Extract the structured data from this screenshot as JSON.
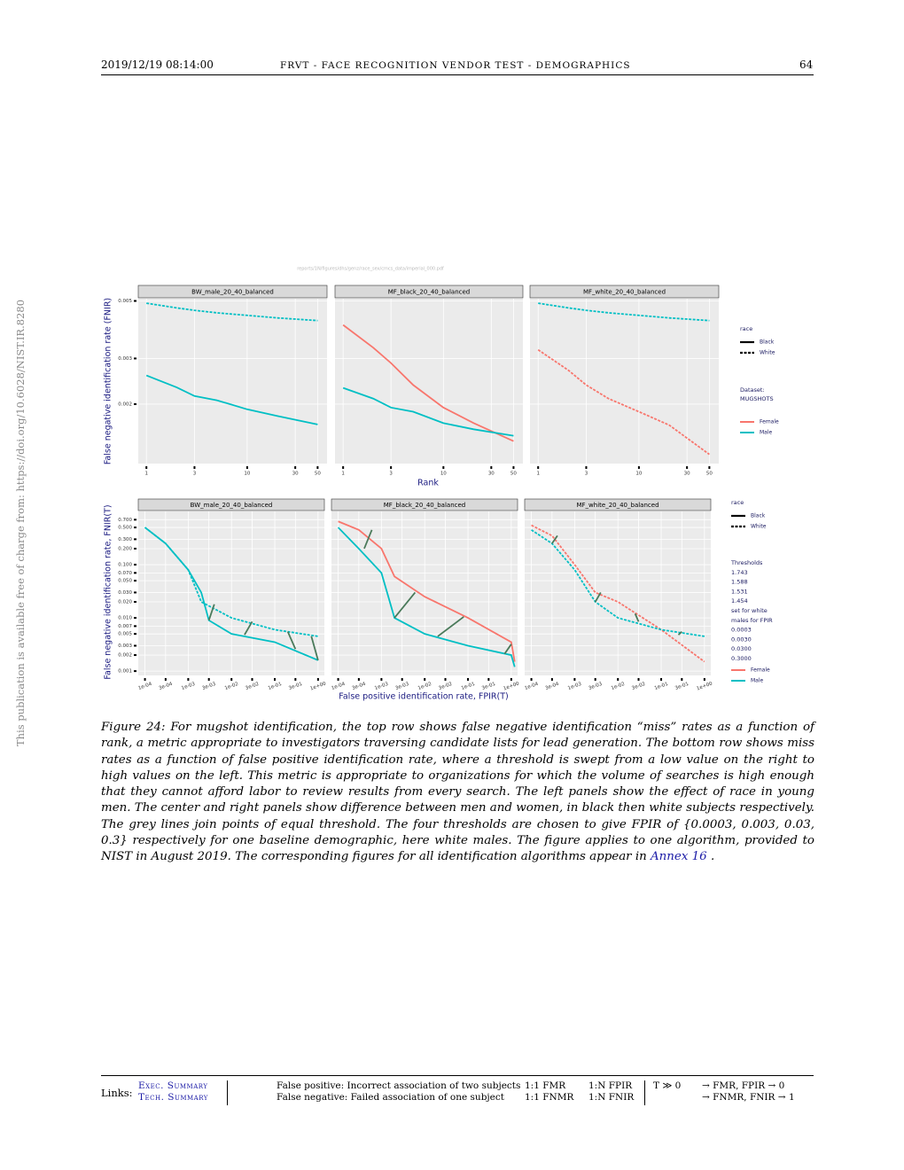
{
  "header": {
    "date": "2019/12/19  08:14:00",
    "title": "FRVT - FACE RECOGNITION VENDOR TEST - DEMOGRAPHICS",
    "page": "64"
  },
  "side_note": "This publication is available free of charge from: https://doi.org/10.6028/NIST.IR.8280",
  "figure": {
    "path": "reports/1N/figures/dhs/genz/race_sex/cmcs_data/imperial_000.pdf",
    "top_xlabel": "Rank",
    "top_ylabel": "False negative identification rate (FNIR)",
    "bottom_xlabel": "False positive identification rate, FPIR(T)",
    "bottom_ylabel": "False negative identification rate, FNIR(T)",
    "legend_top": {
      "race_title": "race",
      "race": [
        {
          "label": "Black",
          "dash": false
        },
        {
          "label": "White",
          "dash": true
        }
      ],
      "dataset_title": "Dataset:",
      "dataset": "MUGSHOTS",
      "sex": [
        {
          "label": "Female",
          "color": "#F8766D"
        },
        {
          "label": "Male",
          "color": "#00BFC4"
        }
      ]
    },
    "legend_bottom": {
      "race_title": "race",
      "race": [
        {
          "label": "Black",
          "dash": false
        },
        {
          "label": "White",
          "dash": true
        }
      ],
      "thresholds_title": "Thresholds",
      "thresholds": [
        "1.743",
        "1.588",
        "1.531",
        "1.454"
      ],
      "note": [
        "set for white",
        "males for FPIR"
      ],
      "fpir": [
        "0.0003",
        "0.0030",
        "0.0300",
        "0.3000"
      ],
      "sex": [
        {
          "label": "Female",
          "color": "#F8766D"
        },
        {
          "label": "Male",
          "color": "#00BFC4"
        }
      ]
    }
  },
  "chart_data": [
    {
      "type": "line",
      "title": "BW_male_20_40_balanced",
      "xlog": true,
      "ylog": true,
      "grid": true,
      "x": [
        1,
        2,
        3,
        5,
        10,
        20,
        50
      ],
      "xlim": [
        0.83,
        62
      ],
      "ylim": [
        0.00118,
        0.0051
      ],
      "xticks": [
        1,
        3,
        10,
        30,
        50
      ],
      "yticks": [
        0.002,
        0.003,
        0.005
      ],
      "series": [
        {
          "color": "#00BFC4",
          "dash": true,
          "values": [
            0.0049,
            0.0047,
            0.0046,
            0.0045,
            0.0044,
            0.0043,
            0.0042
          ]
        },
        {
          "color": "#00BFC4",
          "dash": false,
          "values": [
            0.00258,
            0.00232,
            0.00215,
            0.00207,
            0.00191,
            0.0018,
            0.00167
          ]
        }
      ]
    },
    {
      "type": "line",
      "title": "MF_black_20_40_balanced",
      "xlog": true,
      "ylog": true,
      "grid": true,
      "x": [
        1,
        2,
        3,
        5,
        10,
        20,
        50
      ],
      "xlim": [
        0.83,
        62
      ],
      "ylim": [
        0.00118,
        0.0051
      ],
      "xticks": [
        1,
        3,
        10,
        30,
        50
      ],
      "yticks": [
        0.002,
        0.003,
        0.005
      ],
      "series": [
        {
          "color": "#F8766D",
          "dash": false,
          "values": [
            0.00404,
            0.0033,
            0.00288,
            0.00237,
            0.00194,
            0.00169,
            0.00144
          ]
        },
        {
          "color": "#00BFC4",
          "dash": false,
          "values": [
            0.00231,
            0.0021,
            0.00194,
            0.00187,
            0.00169,
            0.0016,
            0.00151
          ]
        }
      ]
    },
    {
      "type": "line",
      "title": "MF_white_20_40_balanced",
      "xlog": true,
      "ylog": true,
      "grid": true,
      "x": [
        1,
        2,
        3,
        5,
        10,
        20,
        50
      ],
      "xlim": [
        0.83,
        62
      ],
      "ylim": [
        0.00118,
        0.0051
      ],
      "xticks": [
        1,
        3,
        10,
        30,
        50
      ],
      "yticks": [
        0.002,
        0.003,
        0.005
      ],
      "series": [
        {
          "color": "#00BFC4",
          "dash": true,
          "values": [
            0.0049,
            0.0047,
            0.0046,
            0.0045,
            0.0044,
            0.0043,
            0.0042
          ]
        },
        {
          "color": "#F8766D",
          "dash": true,
          "values": [
            0.00324,
            0.0027,
            0.00237,
            0.0021,
            0.00187,
            0.00166,
            0.00128
          ]
        }
      ]
    },
    {
      "type": "line",
      "title": "BW_male_20_40_balanced",
      "xlog": true,
      "ylog": true,
      "grid": true,
      "xlim": [
        7e-05,
        1.4
      ],
      "ylim": [
        0.00083,
        1.0
      ],
      "xticks": [
        {
          "value": 0.0001,
          "label": "1e-04"
        },
        {
          "value": 0.0003,
          "label": "3e-04"
        },
        {
          "value": 0.001,
          "label": "1e-03"
        },
        {
          "value": 0.003,
          "label": "3e-03"
        },
        {
          "value": 0.01,
          "label": "1e-02"
        },
        {
          "value": 0.03,
          "label": "3e-02"
        },
        {
          "value": 0.1,
          "label": "1e-01"
        },
        {
          "value": 0.3,
          "label": "3e-01"
        },
        {
          "value": 1,
          "label": "1e+00"
        }
      ],
      "yticks": [
        {
          "value": 0.7,
          "label": "0.700"
        },
        {
          "value": 0.5,
          "label": "0.500"
        },
        {
          "value": 0.3,
          "label": "0.300"
        },
        {
          "value": 0.2,
          "label": "0.200"
        },
        {
          "value": 0.1,
          "label": "0.100"
        },
        {
          "value": 0.07,
          "label": "0.070"
        },
        {
          "value": 0.05,
          "label": "0.050"
        },
        {
          "value": 0.03,
          "label": "0.030"
        },
        {
          "value": 0.02,
          "label": "0.020"
        },
        {
          "value": 0.01,
          "label": "0.010"
        },
        {
          "value": 0.007,
          "label": "0.007"
        },
        {
          "value": 0.005,
          "label": "0.005"
        },
        {
          "value": 0.003,
          "label": "0.003"
        },
        {
          "value": 0.002,
          "label": "0.002"
        },
        {
          "value": 0.001,
          "label": "0.001"
        }
      ],
      "series": [
        {
          "color": "#00BFC4",
          "dash": true,
          "x": [
            0.0001,
            0.0003,
            0.001,
            0.002,
            0.01,
            0.1,
            1
          ],
          "values": [
            0.5,
            0.25,
            0.08,
            0.02,
            0.01,
            0.006,
            0.0045
          ]
        },
        {
          "color": "#00BFC4",
          "dash": false,
          "x": [
            0.0001,
            0.0003,
            0.001,
            0.002,
            0.003,
            0.01,
            0.1,
            1
          ],
          "values": [
            0.5,
            0.25,
            0.08,
            0.03,
            0.009,
            0.005,
            0.0035,
            0.0016
          ]
        }
      ],
      "links": [
        {
          "x": [
            0.003,
            0.004
          ],
          "y": [
            0.009,
            0.018
          ]
        },
        {
          "x": [
            0.02,
            0.03
          ],
          "y": [
            0.0048,
            0.0085
          ]
        },
        {
          "x": [
            0.3,
            0.2
          ],
          "y": [
            0.0026,
            0.0055
          ]
        },
        {
          "x": [
            1,
            0.7
          ],
          "y": [
            0.0016,
            0.0045
          ]
        }
      ]
    },
    {
      "type": "line",
      "title": "MF_black_20_40_balanced",
      "xlog": true,
      "ylog": true,
      "grid": true,
      "xlim": [
        7e-05,
        1.4
      ],
      "ylim": [
        0.00083,
        1.0
      ],
      "xticks": [
        {
          "value": 0.0001,
          "label": "1e-04"
        },
        {
          "value": 0.0003,
          "label": "3e-04"
        },
        {
          "value": 0.001,
          "label": "1e-03"
        },
        {
          "value": 0.003,
          "label": "3e-03"
        },
        {
          "value": 0.01,
          "label": "1e-02"
        },
        {
          "value": 0.03,
          "label": "3e-02"
        },
        {
          "value": 0.1,
          "label": "1e-01"
        },
        {
          "value": 0.3,
          "label": "3e-01"
        },
        {
          "value": 1,
          "label": "1e+00"
        }
      ],
      "yticks": [
        {
          "value": 0.7,
          "label": "0.700"
        },
        {
          "value": 0.5,
          "label": "0.500"
        },
        {
          "value": 0.3,
          "label": "0.300"
        },
        {
          "value": 0.2,
          "label": "0.200"
        },
        {
          "value": 0.1,
          "label": "0.100"
        },
        {
          "value": 0.07,
          "label": "0.070"
        },
        {
          "value": 0.05,
          "label": "0.050"
        },
        {
          "value": 0.03,
          "label": "0.030"
        },
        {
          "value": 0.02,
          "label": "0.020"
        },
        {
          "value": 0.01,
          "label": "0.010"
        },
        {
          "value": 0.007,
          "label": "0.007"
        },
        {
          "value": 0.005,
          "label": "0.005"
        },
        {
          "value": 0.003,
          "label": "0.003"
        },
        {
          "value": 0.002,
          "label": "0.002"
        },
        {
          "value": 0.001,
          "label": "0.001"
        }
      ],
      "series": [
        {
          "color": "#F8766D",
          "dash": false,
          "x": [
            0.0001,
            0.0003,
            0.001,
            0.002,
            0.01,
            0.1,
            1,
            1.2
          ],
          "values": [
            0.65,
            0.45,
            0.2,
            0.06,
            0.025,
            0.01,
            0.0035,
            0.0015
          ]
        },
        {
          "color": "#00BFC4",
          "dash": false,
          "x": [
            0.0001,
            0.0003,
            0.001,
            0.002,
            0.01,
            0.1,
            1,
            1.2
          ],
          "values": [
            0.5,
            0.2,
            0.07,
            0.01,
            0.005,
            0.003,
            0.002,
            0.0012
          ]
        }
      ],
      "links": [
        {
          "x": [
            0.0004,
            0.0006
          ],
          "y": [
            0.2,
            0.45
          ]
        },
        {
          "x": [
            0.002,
            0.006
          ],
          "y": [
            0.01,
            0.03
          ]
        },
        {
          "x": [
            0.02,
            0.08
          ],
          "y": [
            0.0045,
            0.0105
          ]
        },
        {
          "x": [
            0.7,
            1.0
          ],
          "y": [
            0.0021,
            0.0032
          ]
        }
      ]
    },
    {
      "type": "line",
      "title": "MF_white_20_40_balanced",
      "xlog": true,
      "ylog": true,
      "grid": true,
      "xlim": [
        7e-05,
        1.4
      ],
      "ylim": [
        0.00083,
        1.0
      ],
      "xticks": [
        {
          "value": 0.0001,
          "label": "1e-04"
        },
        {
          "value": 0.0003,
          "label": "3e-04"
        },
        {
          "value": 0.001,
          "label": "1e-03"
        },
        {
          "value": 0.003,
          "label": "3e-03"
        },
        {
          "value": 0.01,
          "label": "1e-02"
        },
        {
          "value": 0.03,
          "label": "3e-02"
        },
        {
          "value": 0.1,
          "label": "1e-01"
        },
        {
          "value": 0.3,
          "label": "3e-01"
        },
        {
          "value": 1,
          "label": "1e+00"
        }
      ],
      "yticks": [
        {
          "value": 0.7,
          "label": "0.700"
        },
        {
          "value": 0.5,
          "label": "0.500"
        },
        {
          "value": 0.3,
          "label": "0.300"
        },
        {
          "value": 0.2,
          "label": "0.200"
        },
        {
          "value": 0.1,
          "label": "0.100"
        },
        {
          "value": 0.07,
          "label": "0.070"
        },
        {
          "value": 0.05,
          "label": "0.050"
        },
        {
          "value": 0.03,
          "label": "0.030"
        },
        {
          "value": 0.02,
          "label": "0.020"
        },
        {
          "value": 0.01,
          "label": "0.010"
        },
        {
          "value": 0.007,
          "label": "0.007"
        },
        {
          "value": 0.005,
          "label": "0.005"
        },
        {
          "value": 0.003,
          "label": "0.003"
        },
        {
          "value": 0.002,
          "label": "0.002"
        },
        {
          "value": 0.001,
          "label": "0.001"
        }
      ],
      "series": [
        {
          "color": "#F8766D",
          "dash": true,
          "x": [
            0.0001,
            0.0003,
            0.001,
            0.003,
            0.01,
            0.1,
            1
          ],
          "values": [
            0.55,
            0.35,
            0.1,
            0.03,
            0.02,
            0.006,
            0.0015
          ]
        },
        {
          "color": "#00BFC4",
          "dash": true,
          "x": [
            0.0001,
            0.0003,
            0.001,
            0.003,
            0.01,
            0.1,
            1
          ],
          "values": [
            0.45,
            0.25,
            0.08,
            0.02,
            0.01,
            0.006,
            0.0045
          ]
        }
      ],
      "links": [
        {
          "x": [
            0.0003,
            0.0004
          ],
          "y": [
            0.25,
            0.35
          ]
        },
        {
          "x": [
            0.003,
            0.004
          ],
          "y": [
            0.02,
            0.03
          ]
        },
        {
          "x": [
            0.03,
            0.025
          ],
          "y": [
            0.0085,
            0.012
          ]
        },
        {
          "x": [
            0.3,
            0.25
          ],
          "y": [
            0.0055,
            0.0048
          ]
        }
      ]
    }
  ],
  "caption": {
    "text": "Figure 24: For mugshot identification, the top row shows false negative identification “miss” rates as a function of rank, a metric appropriate to investigators traversing candidate lists for lead generation. The bottom row shows miss rates as a function of false positive identification rate, where a threshold is swept from a low value on the right to high values on the left. This metric is appropriate to organizations for which the volume of searches is high enough that they cannot afford labor to review results from every search. The left panels show the effect of race in young men. The center and right panels show difference between men and women, in black then white subjects respectively. The grey lines join points of equal threshold. The four thresholds are chosen to give FPIR of {0.0003, 0.003, 0.03, 0.3} respectively for one baseline demographic, here white males. The figure applies to one algorithm, provided to NIST in August 2019. The corresponding figures for all identification algorithms appear in ",
    "link": "Annex 16",
    "end": " ."
  },
  "footer": {
    "links_label": "Links:",
    "exec": "Exec. Summary",
    "tech": "Tech. Summary",
    "fp": "False positive: Incorrect association of two subjects",
    "fn": "False negative: Failed association of one subject",
    "fmr": "1:1 FMR",
    "fpir": "1:N FPIR",
    "fnmr": "1:1 FNMR",
    "fnir": "1:N FNIR",
    "t": "T ≫ 0",
    "r1": "→ FMR, FPIR → 0",
    "r2": "→ FNMR, FNIR → 1"
  }
}
